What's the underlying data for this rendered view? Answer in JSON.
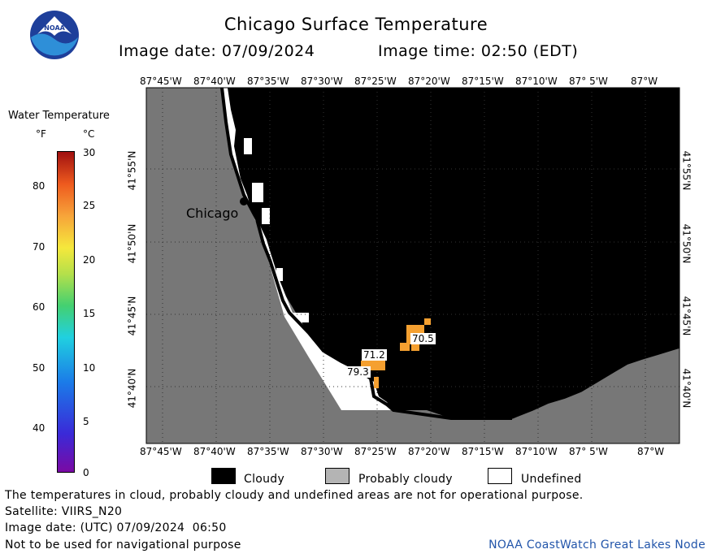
{
  "header": {
    "title": "Chicago Surface Temperature",
    "image_date": "Image date: 07/09/2024",
    "image_time": "Image time: 02:50 (EDT)",
    "logo_text": "NOAA"
  },
  "legend": {
    "title": "Water Temperature",
    "unit_f": "°F",
    "unit_c": "°C",
    "f_ticks": [
      "80",
      "70",
      "60",
      "50",
      "40"
    ],
    "c_ticks": [
      "30",
      "25",
      "20",
      "15",
      "10",
      "5",
      "0"
    ]
  },
  "map": {
    "lon_top": [
      "87°45'W",
      "87°40'W",
      "87°35'W",
      "87°30'W",
      "87°25'W",
      "87°20'W",
      "87°15'W",
      "87°10'W",
      "87° 5'W",
      "87°W"
    ],
    "lon_bottom": [
      "87°45'W",
      "87°40'W",
      "87°35'W",
      "87°30'W",
      "87°25'W",
      "87°20'W",
      "87°15'W",
      "87°10'W",
      "87° 5'W",
      "87°W"
    ],
    "lat_left": [
      "41°55'N",
      "41°50'N",
      "41°45'N",
      "41°40'N"
    ],
    "lat_right": [
      "41°55'N",
      "41°50'N",
      "41°45'N",
      "41°40'N"
    ],
    "city_label": "Chicago",
    "temp_labels": [
      "70.5",
      "71.2",
      "79.3"
    ],
    "colors": {
      "land": "#777777",
      "cloudy": "#000000",
      "undefined": "#ffffff",
      "warm": "#f5a030"
    }
  },
  "key": {
    "cloudy": "Cloudy",
    "probably_cloudy": "Probably cloudy",
    "undefined": "Undefined"
  },
  "footer": {
    "note": "The temperatures in cloud, probably cloudy and undefined areas are not for operational purpose.",
    "satellite": "Satellite: VIIRS_N20",
    "utc_date": "Image date: (UTC) 07/09/2024  06:50",
    "nav": "Not to be used for navigational purpose",
    "credit": "NOAA CoastWatch Great Lakes Node"
  }
}
